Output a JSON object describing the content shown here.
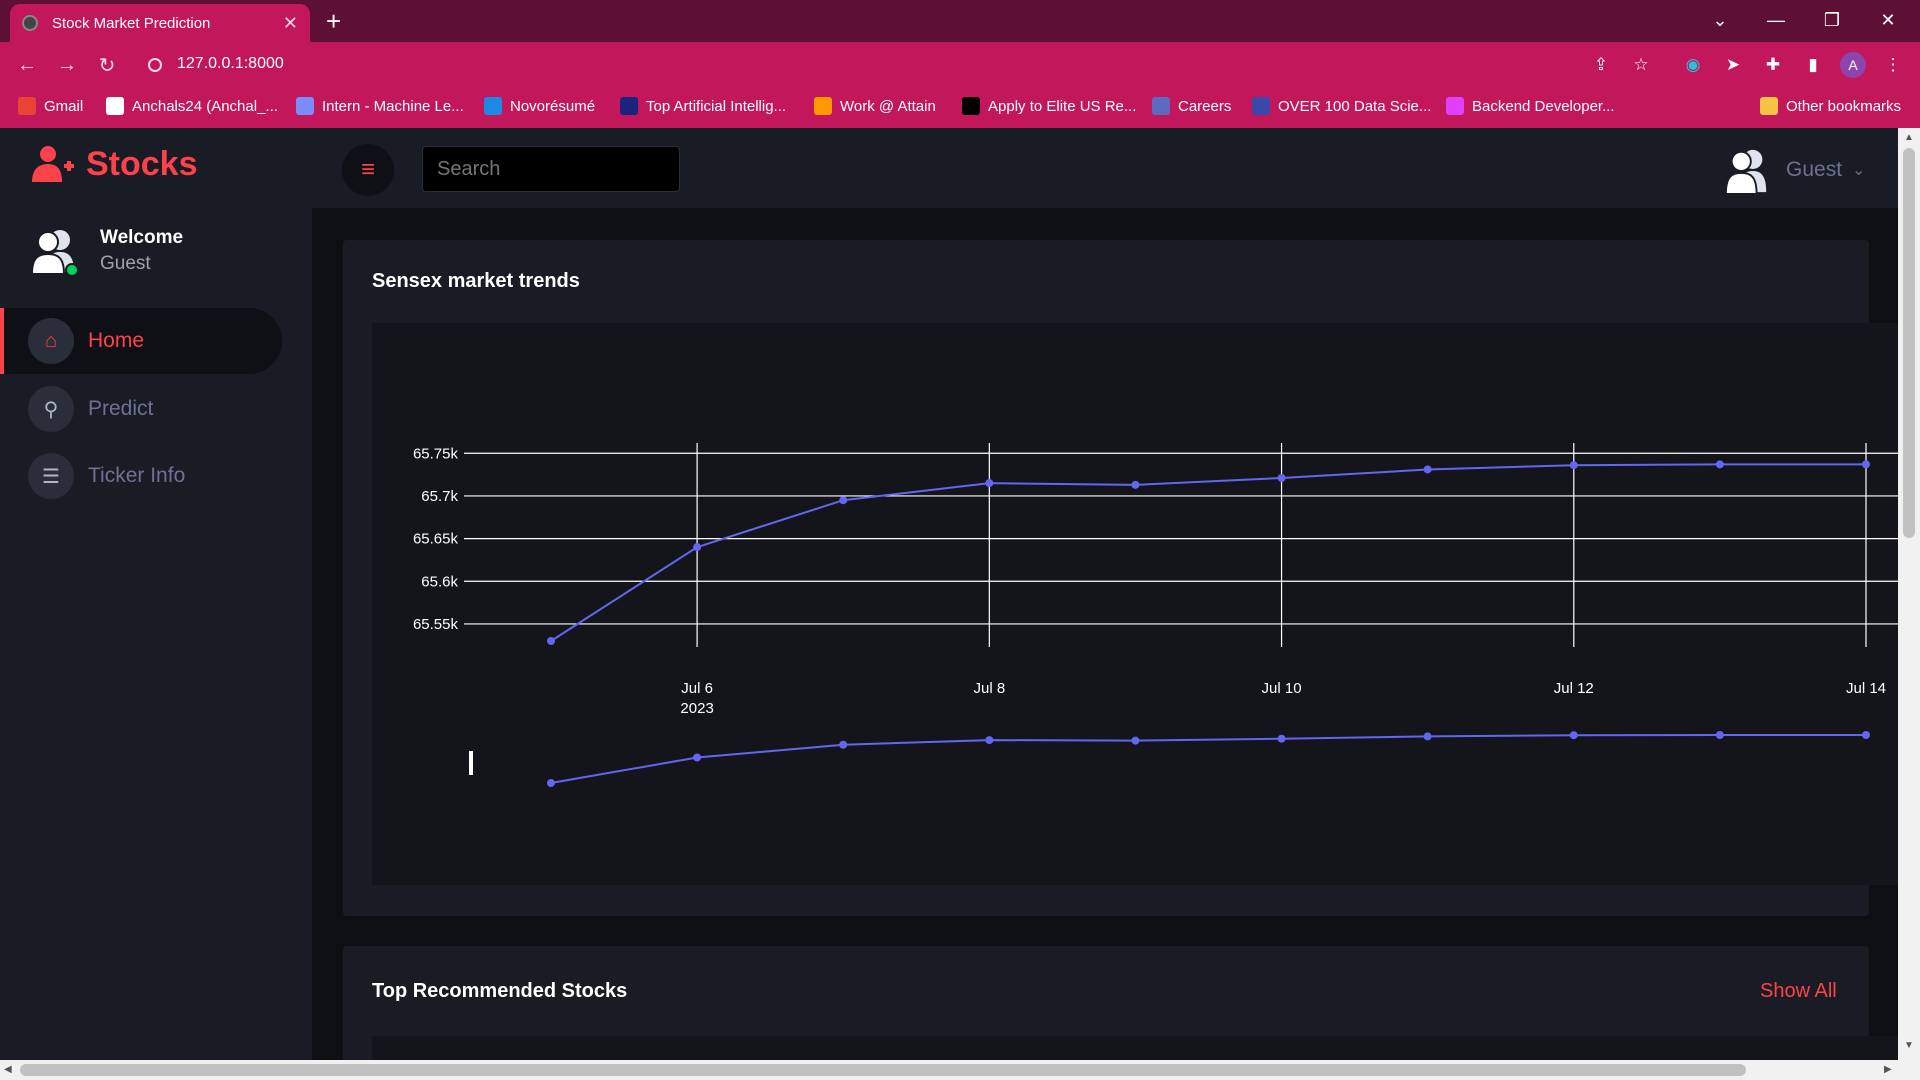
{
  "browser": {
    "tab_title": "Stock Market Prediction",
    "tab_close": "✕",
    "new_tab": "+",
    "address": "127.0.0.1:8000",
    "profile_initial": "A",
    "bookmarks": [
      {
        "label": "Gmail",
        "color": "#ea4335"
      },
      {
        "label": "Anchals24 (Anchal_...",
        "color": "#ffffff"
      },
      {
        "label": "Intern - Machine Le...",
        "color": "#7b8cff"
      },
      {
        "label": "Novorésumé",
        "color": "#1e88e5"
      },
      {
        "label": "Top Artificial Intellig...",
        "color": "#1a237e"
      },
      {
        "label": "Work @ Attain",
        "color": "#ff9800"
      },
      {
        "label": "Apply to Elite US Re...",
        "color": "#000000"
      },
      {
        "label": "Careers",
        "color": "#5c6bc0"
      },
      {
        "label": "OVER 100 Data Scie...",
        "color": "#3949ab"
      },
      {
        "label": "Backend Developer...",
        "color": "#e040fb"
      }
    ],
    "other_bookmarks": "Other bookmarks"
  },
  "app": {
    "brand": "Stocks",
    "welcome_title": "Welcome",
    "welcome_user": "Guest",
    "menu": [
      {
        "label": "Home",
        "icon": "home-icon",
        "active": true
      },
      {
        "label": "Predict",
        "icon": "search-icon",
        "active": false
      },
      {
        "label": "Ticker Info",
        "icon": "list-icon",
        "active": false
      }
    ],
    "search_placeholder": "Search",
    "user_label": "Guest",
    "accent": "#fc424a",
    "line_color": "#6366f1"
  },
  "main": {
    "chart_card_title": "Sensex market trends",
    "recommended_title": "Top Recommended Stocks",
    "show_all": "Show All"
  },
  "chart_data": {
    "type": "line",
    "title": "",
    "xlabel": "",
    "ylabel": "",
    "x": [
      "2023-07-05",
      "2023-07-06",
      "2023-07-07",
      "2023-07-08",
      "2023-07-09",
      "2023-07-10",
      "2023-07-11",
      "2023-07-12",
      "2023-07-13",
      "2023-07-14"
    ],
    "x_tick_labels": [
      "Jul 6",
      "Jul 8",
      "Jul 10",
      "Jul 12",
      "Jul 14"
    ],
    "x_tick_sublabel": "2023",
    "x_tick_dates": [
      "2023-07-06",
      "2023-07-08",
      "2023-07-10",
      "2023-07-12",
      "2023-07-14"
    ],
    "y_tick_labels": [
      "65.75k",
      "65.7k",
      "65.65k",
      "65.6k",
      "65.55k"
    ],
    "y_tick_values": [
      65750,
      65700,
      65650,
      65600,
      65550
    ],
    "ylim": [
      65530,
      65755
    ],
    "series": [
      {
        "values": [
          65530,
          65640,
          65695,
          65715,
          65713,
          65721,
          65731,
          65736,
          65737,
          65737
        ]
      }
    ],
    "rangeslider": true,
    "grid": true
  }
}
